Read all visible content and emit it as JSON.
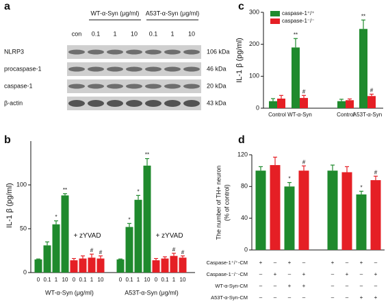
{
  "blot": {
    "letter": "a",
    "headers": [
      "WT-α-Syn (μg/ml)",
      "A53T-α-Syn (μg/ml)"
    ],
    "lanes": [
      "con",
      "0.1",
      "1",
      "10",
      "0.1",
      "1",
      "10"
    ],
    "rows": [
      {
        "label": "NLRP3",
        "kda": "106 kDa"
      },
      {
        "label": "procaspase-1",
        "kda": "46 kDa"
      },
      {
        "label": "caspase-1",
        "kda": "20 kDa"
      },
      {
        "label": "β-actin",
        "kda": "43 kDa"
      }
    ]
  },
  "chart_data": [
    {
      "type": "bar",
      "letter": "b",
      "y_label": "IL-1 β (pg/ml)",
      "ylim": [
        0,
        150
      ],
      "yticks": [
        0,
        50,
        100
      ],
      "categories": [
        "0",
        "0.1",
        "1",
        "10",
        "0",
        "0.1",
        "1",
        "10",
        "0",
        "0.1",
        "1",
        "10",
        "0",
        "0.1",
        "1",
        "10"
      ],
      "group_labels": [
        "WT-α-Syn (μg/ml)",
        "A53T-α-Syn (μg/ml)"
      ],
      "zyvad_labels": [
        "+ zYVAD",
        "+ zYVAD"
      ],
      "series": [
        {
          "color": "#1f8a2d",
          "values": [
            15,
            31,
            55,
            88,
            null,
            null,
            null,
            null,
            15,
            52,
            83,
            122,
            null,
            null,
            null,
            null
          ],
          "errors": [
            0.5,
            4,
            4,
            2,
            null,
            null,
            null,
            null,
            0.5,
            4,
            5,
            8,
            null,
            null,
            null,
            null
          ],
          "annotations": [
            null,
            null,
            "*",
            "**",
            null,
            null,
            null,
            null,
            null,
            "*",
            "*",
            "**",
            null,
            null,
            null,
            null
          ]
        },
        {
          "color": "#e51f25",
          "values": [
            null,
            null,
            null,
            null,
            14,
            16,
            17,
            16,
            null,
            null,
            null,
            null,
            14,
            16,
            19,
            17
          ],
          "errors": [
            null,
            null,
            null,
            null,
            2,
            3,
            4,
            3,
            null,
            null,
            null,
            null,
            2,
            2,
            3,
            2
          ],
          "annotations": [
            null,
            null,
            null,
            null,
            null,
            null,
            "#",
            "#",
            null,
            null,
            null,
            null,
            null,
            null,
            "#",
            "#"
          ]
        }
      ]
    },
    {
      "type": "bar",
      "letter": "c",
      "y_label": "IL-1 β (pg/ml)",
      "ylim": [
        0,
        300
      ],
      "yticks": [
        0,
        100,
        200,
        300
      ],
      "categories": [
        "Control",
        "WT-α-Syn",
        "Control",
        "A53T-α-Syn"
      ],
      "series": [
        {
          "name": "caspase-1⁺/⁺",
          "color": "#1f8a2d",
          "values": [
            22,
            190,
            22,
            248
          ],
          "errors": [
            8,
            28,
            6,
            28
          ],
          "annotations": [
            null,
            "**",
            null,
            "**"
          ]
        },
        {
          "name": "caspase-1⁻/⁻",
          "color": "#e51f25",
          "values": [
            30,
            32,
            25,
            38
          ],
          "errors": [
            10,
            8,
            4,
            6
          ],
          "annotations": [
            null,
            "#",
            null,
            "#"
          ]
        }
      ]
    },
    {
      "type": "bar",
      "letter": "d",
      "y_label": [
        "The number of TH+ neuron",
        "(% of control)"
      ],
      "ylim": [
        0,
        120
      ],
      "yticks": [
        0,
        40,
        80,
        120
      ],
      "series": [
        {
          "color": "#1f8a2d",
          "values": [
            100,
            null,
            80,
            null,
            100,
            null,
            70,
            null
          ],
          "errors": [
            5,
            null,
            5,
            null,
            7,
            null,
            4,
            null
          ],
          "annotations": [
            null,
            null,
            "*",
            null,
            null,
            null,
            "*",
            null
          ]
        },
        {
          "color": "#e51f25",
          "values": [
            null,
            107,
            null,
            100,
            null,
            98,
            null,
            88
          ],
          "errors": [
            null,
            10,
            null,
            6,
            null,
            7,
            null,
            5
          ],
          "annotations": [
            null,
            null,
            null,
            "#",
            null,
            null,
            null,
            "#"
          ]
        }
      ],
      "table": {
        "rows": [
          {
            "label": "Caspase-1⁺/⁺-CM",
            "cells": [
              "+",
              "–",
              "+",
              "–",
              "+",
              "–",
              "+",
              "–"
            ]
          },
          {
            "label": "Caspase-1⁻/⁻-CM",
            "cells": [
              "–",
              "+",
              "–",
              "+",
              "–",
              "+",
              "–",
              "+"
            ]
          },
          {
            "label": "WT-α-Syn-CM",
            "cells": [
              "–",
              "–",
              "+",
              "+",
              "–",
              "–",
              "–",
              "–"
            ]
          },
          {
            "label": "A53T-α-Syn-CM",
            "cells": [
              "–",
              "–",
              "–",
              "–",
              "–",
              "–",
              "+",
              "+"
            ]
          }
        ]
      }
    }
  ]
}
